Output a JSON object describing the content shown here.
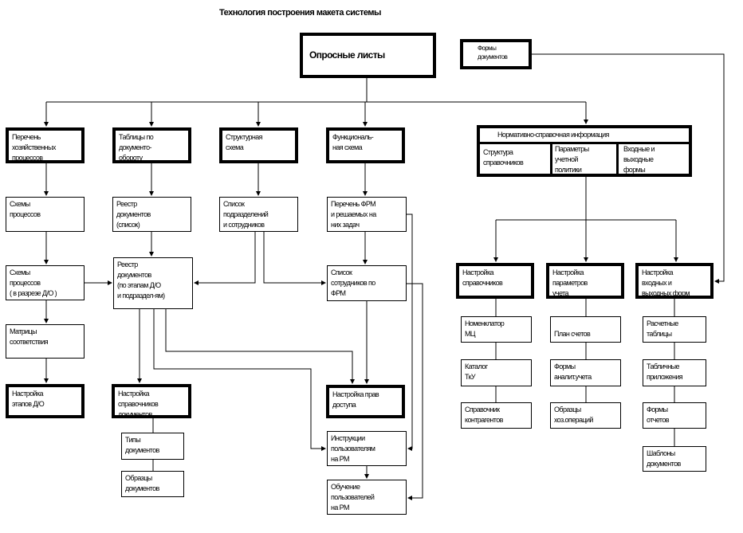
{
  "title": "Технология построения макета системы",
  "main": "Опросные листы",
  "forms_docs": "Формы\nдокументов",
  "row1": [
    "   Перечень\nхозяйственных\n     процессов",
    "Таблицы по\n  документо-\n   обороту",
    "Структурная\n         схема",
    "Функциональ-\n       ная схема"
  ],
  "nsi": {
    "header": "Нормативно-справочная информация",
    "cells": [
      "   Структура\nсправочников",
      "Параметры\n    учетной\n   политики",
      "Входные и\nвыходные\n      формы"
    ]
  },
  "row2": [
    "      Схемы\n   процессов",
    "       Реестр\n  документов\n      (список)",
    "         Список\nподразделений\n и сотрудников",
    "Перечень ФРМ\nи решаемых на\n     них задач"
  ],
  "schemes_do": "        Схемы\n     процессов\n( в разрезе Д/О                   )",
  "registry_stages": "       Реестр\n   документов\n(по этапам Д/О\nи подраздел-ям)",
  "staff_frm": "       Список\nсотрудников по\n           ФРМ",
  "matrices": "      Матрицы\nсоответствия",
  "setup_stages": "     Настройка\n   этапов Д/О",
  "setup_doc_refs": "  Настройка\nсправочников\n   документов",
  "doc_types": "       Типы\nдокументов",
  "doc_samples": "    Образцы\nдокументов",
  "setup_access": "Настройка прав\n        доступа",
  "user_instr": "    Инструкции\nпользователям\n          на РМ",
  "user_train": "     Обучение\nпользователей\n          на РМ",
  "setup_right": [
    "       Настройка\nсправочников",
    "Настройка\nпараметров\n         учета",
    "    Настройка\n   входных и\nвыходных форм"
  ],
  "col_refs": [
    "Номенклатор\n          МЦ",
    "      Каталог\n         ТкУ",
    "  Справочник\nконтрагентов"
  ],
  "col_params": [
    "\n  План счетов",
    "       Формы\nаналит.учета",
    "     Образцы\nхоз.операций"
  ],
  "col_forms": [
    "Расчетные\n   таблицы",
    "Табличные\nприложения",
    "      Формы\n      отчетов",
    "   Шаблоны\nдокументов"
  ]
}
